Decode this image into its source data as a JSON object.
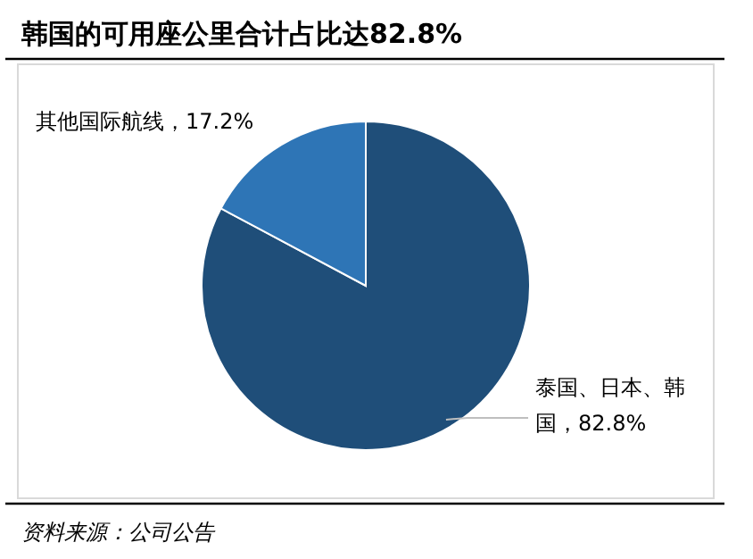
{
  "chart_data": {
    "type": "pie",
    "title": "韩国的可用座公里合计占比达82.8%",
    "categories": [
      "泰国、日本、韩国",
      "其他国际航线"
    ],
    "values": [
      82.8,
      17.2
    ],
    "colors": [
      "#1f4e79",
      "#2e75b6"
    ],
    "value_labels": [
      "82.8%",
      "17.2%"
    ],
    "annotations": [
      "资料来源：公司公告"
    ]
  }
}
